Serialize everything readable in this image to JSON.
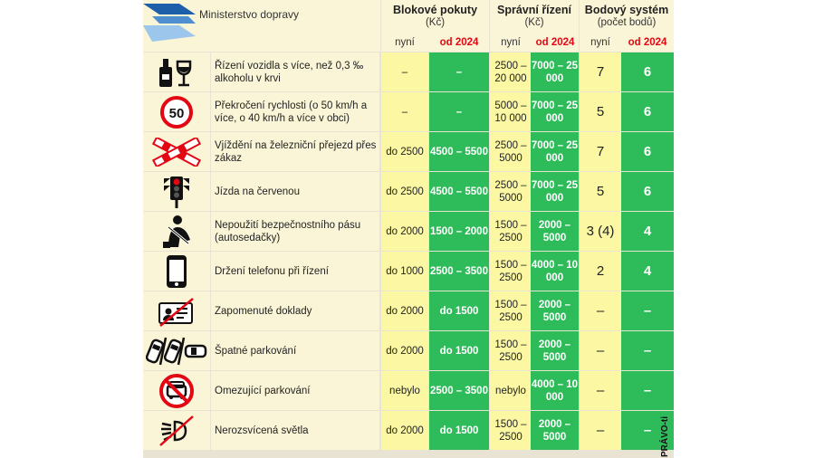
{
  "header": {
    "ministry": "Ministerstvo dopravy",
    "groups": [
      {
        "title": "Blokové pokuty",
        "sub": "(Kč)"
      },
      {
        "title": "Správní řízení",
        "sub": "(Kč)"
      },
      {
        "title": "Bodový systém",
        "sub": "(počet bodů)"
      }
    ],
    "col_now": "nyní",
    "col_2024": "od 2024"
  },
  "colors": {
    "green": "#2ebc5a",
    "yellow": "#fbf7a2",
    "red": "#e30613",
    "cream": "#fbf5d7"
  },
  "rows": [
    {
      "icon": "alcohol-icon",
      "label": "Řízení vozidla s více, než 0,3 ‰ alkoholu v krvi",
      "blok_now": "–",
      "blok_2024": "–",
      "spravni_now": "2500 – 20 000",
      "spravni_2024": "7000 – 25 000",
      "body_now": "7",
      "body_2024": "6"
    },
    {
      "icon": "speed-limit-50-icon",
      "label": "Překročení rychlosti (o 50 km/h a více, o 40 km/h a více v obci)",
      "blok_now": "–",
      "blok_2024": "–",
      "spravni_now": "5000 – 10 000",
      "spravni_2024": "7000 – 25 000",
      "body_now": "5",
      "body_2024": "6"
    },
    {
      "icon": "railway-crossing-icon",
      "label": "Vjíždění na železniční přejezd přes zákaz",
      "blok_now": "do 2500",
      "blok_2024": "4500 – 5500",
      "spravni_now": "2500 – 5000",
      "spravni_2024": "7000 – 25 000",
      "body_now": "7",
      "body_2024": "6"
    },
    {
      "icon": "traffic-light-icon",
      "label": "Jízda na červenou",
      "blok_now": "do 2500",
      "blok_2024": "4500 – 5500",
      "spravni_now": "2500 – 5000",
      "spravni_2024": "7000 – 25 000",
      "body_now": "5",
      "body_2024": "6"
    },
    {
      "icon": "seatbelt-icon",
      "label": "Nepoužití bezpečnostního pásu (autosedačky)",
      "blok_now": "do 2000",
      "blok_2024": "1500 – 2000",
      "spravni_now": "1500 – 2500",
      "spravni_2024": "2000 – 5000",
      "body_now": "3 (4)",
      "body_2024": "4"
    },
    {
      "icon": "phone-icon",
      "label": "Držení telefonu při řízení",
      "blok_now": "do 1000",
      "blok_2024": "2500 – 3500",
      "spravni_now": "1500 – 2500",
      "spravni_2024": "4000 – 10 000",
      "body_now": "2",
      "body_2024": "4"
    },
    {
      "icon": "forgotten-documents-icon",
      "label": "Zapomenuté doklady",
      "blok_now": "do 2000",
      "blok_2024": "do 1500",
      "spravni_now": "1500 – 2500",
      "spravni_2024": "2000 – 5000",
      "body_now": "–",
      "body_2024": "–"
    },
    {
      "icon": "bad-parking-icon",
      "label": "Špatné parkování",
      "blok_now": "do 2000",
      "blok_2024": "do 1500",
      "spravni_now": "1500 – 2500",
      "spravni_2024": "2000 – 5000",
      "body_now": "–",
      "body_2024": "–"
    },
    {
      "icon": "restrictive-parking-icon",
      "label": "Omezující parkování",
      "blok_now": "nebylo",
      "blok_2024": "2500 – 3500",
      "spravni_now": "nebylo",
      "spravni_2024": "4000 – 10 000",
      "body_now": "–",
      "body_2024": "–"
    },
    {
      "icon": "unlit-lights-icon",
      "label": "Nerozsvícená světla",
      "blok_now": "do 2000",
      "blok_2024": "do 1500",
      "spravni_now": "1500 – 2500",
      "spravni_2024": "2000 – 5000",
      "body_now": "–",
      "body_2024": "–"
    }
  ],
  "credit": "PRÁVO-ti"
}
